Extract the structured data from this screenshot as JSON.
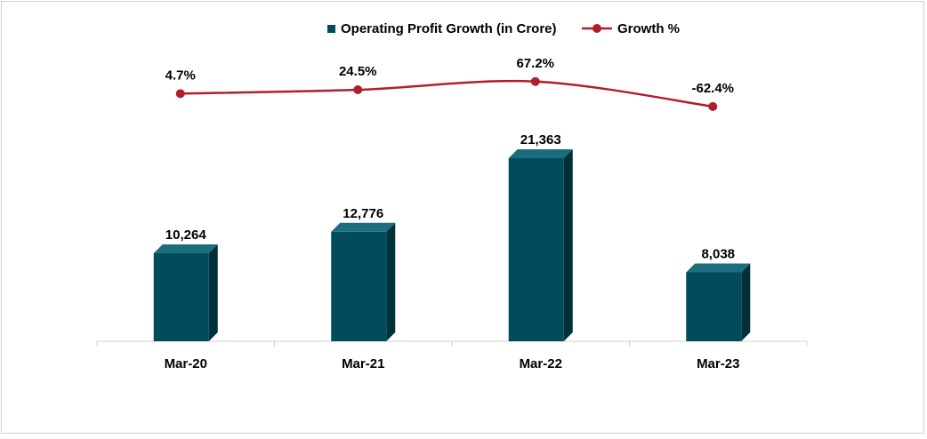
{
  "chart_data": {
    "type": "bar",
    "categories": [
      "Mar-20",
      "Mar-21",
      "Mar-22",
      "Mar-23"
    ],
    "series": [
      {
        "name": "Operating Profit Growth (in Crore)",
        "type": "bar",
        "values": [
          10264,
          12776,
          21363,
          8038
        ],
        "labels": [
          "10,264",
          "12,776",
          "21,363",
          "8,038"
        ],
        "color": "#004c5c",
        "side_color": "#00303a",
        "top_color": "#1c6e7e"
      },
      {
        "name": "Growth %",
        "type": "line",
        "values": [
          4.7,
          24.5,
          67.2,
          -62.4
        ],
        "labels": [
          "4.7%",
          "24.5%",
          "67.2%",
          "-62.4%"
        ],
        "color": "#b01f2e"
      }
    ],
    "legend_position": "top-center",
    "grid": false
  }
}
